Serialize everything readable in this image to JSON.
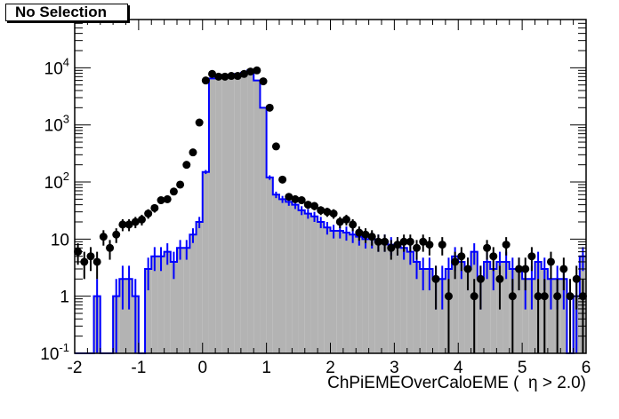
{
  "title": "No Selection",
  "xlabel": "ChPiEMEOverCaloEME (  η > 2.0)",
  "colors": {
    "frame": "#000000",
    "fill": "#b3b3b3",
    "line": "#0000ff",
    "marker": "#000000"
  },
  "chart_data": {
    "type": "bar",
    "title": "No Selection",
    "xlabel": "ChPiEMEOverCaloEME (  η > 2.0)",
    "ylabel": "",
    "log_y": true,
    "xlim": [
      -2,
      6
    ],
    "ylim": [
      0.1,
      70000
    ],
    "x_ticks": [
      -2,
      -1,
      0,
      1,
      2,
      3,
      4,
      5,
      6
    ],
    "y_ticks": [
      {
        "v": 0.1,
        "label": "10^-1"
      },
      {
        "v": 1,
        "label": "1"
      },
      {
        "v": 10,
        "label": "10"
      },
      {
        "v": 100,
        "label": "10^2"
      },
      {
        "v": 1000,
        "label": "10^3"
      },
      {
        "v": 10000,
        "label": "10^4"
      }
    ],
    "bin_width": 0.1,
    "bin_start": -2,
    "series": [
      {
        "style": "filled histogram with blue outline and error bars",
        "values": [
          0,
          0,
          0,
          1,
          0,
          0,
          1,
          2,
          2,
          1,
          0,
          3,
          5,
          5,
          6,
          4,
          7,
          7,
          12,
          20,
          150,
          6500,
          7000,
          7200,
          7500,
          7800,
          8200,
          9000,
          6000,
          2000,
          120,
          60,
          50,
          45,
          40,
          32,
          28,
          25,
          20,
          16,
          14,
          14,
          13,
          12,
          11,
          10,
          10,
          9,
          9,
          8,
          8,
          7,
          6,
          4,
          3,
          3,
          2,
          2,
          3,
          5,
          4,
          3,
          6,
          2,
          4,
          3,
          4,
          4,
          3,
          3,
          2,
          2,
          4,
          3,
          2,
          2,
          2,
          0,
          1,
          5
        ]
      },
      {
        "style": "black points with error bars",
        "x": [
          -1.95,
          -1.85,
          -1.75,
          -1.65,
          -1.55,
          -1.45,
          -1.35,
          -1.25,
          -1.15,
          -1.05,
          -0.95,
          -0.85,
          -0.75,
          -0.65,
          -0.55,
          -0.45,
          -0.35,
          -0.25,
          -0.15,
          -0.05,
          0.05,
          0.15,
          0.25,
          0.35,
          0.45,
          0.55,
          0.65,
          0.75,
          0.85,
          0.95,
          1.05,
          1.15,
          1.25,
          1.35,
          1.45,
          1.55,
          1.65,
          1.75,
          1.85,
          1.95,
          2.05,
          2.15,
          2.25,
          2.35,
          2.45,
          2.55,
          2.65,
          2.75,
          2.85,
          2.95,
          3.05,
          3.15,
          3.25,
          3.35,
          3.45,
          3.55,
          3.65,
          3.75,
          3.85,
          3.95,
          4.05,
          4.15,
          4.25,
          4.35,
          4.45,
          4.55,
          4.65,
          4.75,
          4.85,
          4.95,
          5.05,
          5.15,
          5.25,
          5.35,
          5.45,
          5.55,
          5.65,
          5.75,
          5.85,
          5.95
        ],
        "values": [
          6,
          4,
          5,
          4,
          11,
          7,
          12,
          18,
          18,
          20,
          22,
          28,
          35,
          48,
          50,
          68,
          90,
          200,
          330,
          1100,
          6000,
          7800,
          7000,
          7000,
          7200,
          7200,
          7800,
          8600,
          9000,
          5800,
          2000,
          420,
          110,
          55,
          50,
          48,
          40,
          38,
          32,
          30,
          28,
          20,
          22,
          18,
          13,
          12,
          11,
          9,
          9,
          7,
          8,
          9,
          9,
          7,
          9,
          8,
          2,
          8,
          1,
          4,
          5,
          3,
          1,
          2,
          7,
          5,
          2,
          8,
          1,
          3,
          3,
          5,
          1,
          1,
          4,
          1,
          3,
          1,
          2,
          1
        ]
      }
    ]
  }
}
